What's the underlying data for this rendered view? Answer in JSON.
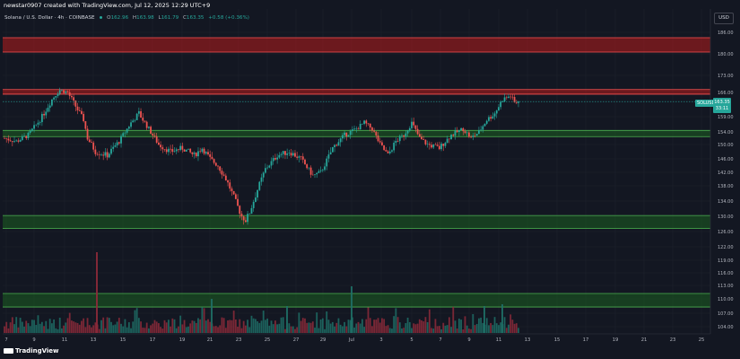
{
  "header": {
    "creator_line": "newstar0907 created with TradingView.com, Jul 12, 2025 12:29 UTC+9",
    "symbol_line": "Solana / U.S. Dollar · 4h · COINBASE",
    "ohlc": {
      "o_label": "O",
      "o": "162.96",
      "h_label": "H",
      "h": "163.98",
      "l_label": "L",
      "l": "161.79",
      "c_label": "C",
      "c": "163.35",
      "change": "+0.58 (+0.36%)"
    }
  },
  "currency_button": "USD",
  "price_badge": {
    "symbol": "SOLUSD",
    "price": "163.35",
    "countdown": "33:11"
  },
  "footer": {
    "brand": "TradingView"
  },
  "colors": {
    "background": "#131722",
    "up": "#26a69a",
    "down": "#ef5350",
    "resistance": "#b71c1c",
    "support": "#1b5e20"
  },
  "chart_data": {
    "type": "candlestick",
    "symbol": "SOLUSD",
    "interval": "4h",
    "y_ticks": [
      "186.00",
      "180.00",
      "173.00",
      "166.00",
      "159.00",
      "154.00",
      "150.00",
      "146.00",
      "142.00",
      "138.00",
      "134.00",
      "130.00",
      "126.00",
      "122.00",
      "119.00",
      "116.00",
      "113.00",
      "110.00",
      "107.00",
      "104.00"
    ],
    "x_ticks": [
      "7",
      "9",
      "11",
      "13",
      "15",
      "17",
      "19",
      "21",
      "23",
      "25",
      "27",
      "29",
      "Jul",
      "3",
      "5",
      "7",
      "9",
      "11",
      "13",
      "15",
      "17",
      "19",
      "21",
      "23",
      "25"
    ],
    "zones": [
      {
        "kind": "resistance",
        "from": 180.5,
        "to": 184.5
      },
      {
        "kind": "resistance",
        "from": 165.5,
        "to": 167.2
      },
      {
        "kind": "support",
        "from": 152.5,
        "to": 154.5
      },
      {
        "kind": "support",
        "from": 126.8,
        "to": 130.2
      },
      {
        "kind": "support",
        "from": 108.3,
        "to": 111.2
      }
    ],
    "price_path_knots": [
      [
        0,
        152
      ],
      [
        6,
        151
      ],
      [
        12,
        153
      ],
      [
        18,
        158
      ],
      [
        24,
        164
      ],
      [
        28,
        167
      ],
      [
        32,
        166
      ],
      [
        36,
        162
      ],
      [
        40,
        158
      ],
      [
        42,
        152
      ],
      [
        46,
        148
      ],
      [
        52,
        147
      ],
      [
        58,
        151
      ],
      [
        64,
        157
      ],
      [
        68,
        160
      ],
      [
        72,
        156
      ],
      [
        78,
        150
      ],
      [
        84,
        148
      ],
      [
        90,
        149
      ],
      [
        96,
        147
      ],
      [
        100,
        149
      ],
      [
        104,
        146
      ],
      [
        108,
        144
      ],
      [
        112,
        140
      ],
      [
        116,
        135
      ],
      [
        120,
        130
      ],
      [
        122,
        129
      ],
      [
        124,
        131
      ],
      [
        128,
        137
      ],
      [
        132,
        143
      ],
      [
        138,
        147
      ],
      [
        144,
        148
      ],
      [
        150,
        146
      ],
      [
        156,
        141
      ],
      [
        160,
        142
      ],
      [
        166,
        149
      ],
      [
        172,
        153
      ],
      [
        178,
        155
      ],
      [
        182,
        157
      ],
      [
        186,
        155
      ],
      [
        190,
        150
      ],
      [
        194,
        147
      ],
      [
        198,
        151
      ],
      [
        202,
        153
      ],
      [
        206,
        157
      ],
      [
        210,
        152
      ],
      [
        214,
        150
      ],
      [
        220,
        149
      ],
      [
        226,
        153
      ],
      [
        232,
        155
      ],
      [
        236,
        152
      ],
      [
        240,
        154
      ],
      [
        244,
        158
      ],
      [
        248,
        160
      ],
      [
        252,
        164
      ],
      [
        256,
        165
      ],
      [
        258,
        163
      ],
      [
        260,
        163.35
      ]
    ],
    "last": 163.35,
    "volume_levels": "relative bar heights, scaled to the lower price band 104–122"
  }
}
